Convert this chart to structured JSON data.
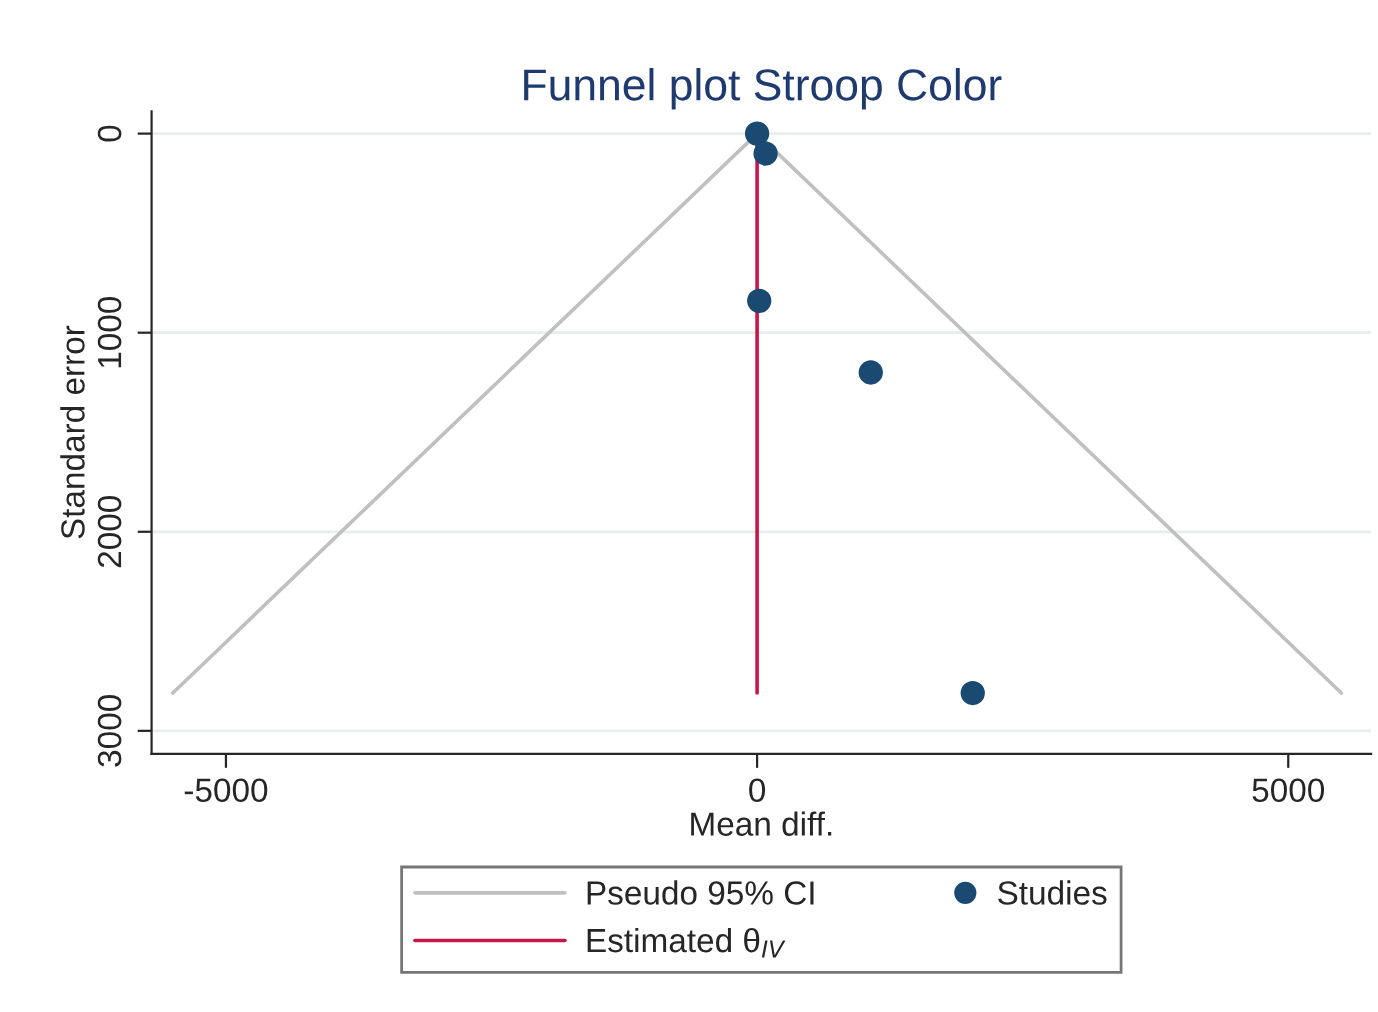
{
  "chart_data": {
    "type": "scatter",
    "title": "Funnel plot Stroop Color",
    "xlabel": "Mean diff.",
    "ylabel": "Standard error",
    "series": [
      {
        "name": "Pseudo 95% CI",
        "type": "line",
        "marker": "none",
        "color": "#c0c0c0",
        "x": [
          -5500,
          0,
          5500
        ],
        "values": [
          2810,
          0,
          2810
        ]
      },
      {
        "name": "Studies",
        "color": "#1a4a72",
        "x": [
          0,
          80,
          20,
          1070,
          2030
        ],
        "values": [
          0,
          100,
          840,
          1200,
          2810
        ]
      },
      {
        "name": "Estimated θ$_{IV}$",
        "type": "line",
        "marker": "none",
        "color": "#c8164a",
        "x": [
          0,
          0
        ],
        "values": [
          0,
          2810
        ]
      }
    ],
    "xlim": [
      -5700,
      5780
    ],
    "ylim": [
      3116,
      -112
    ],
    "xticks": [
      -5000,
      0,
      5000
    ],
    "yticks": [
      0,
      1000,
      2000,
      3000
    ],
    "grid": "y",
    "legend": "bottom",
    "marker": "circle"
  }
}
